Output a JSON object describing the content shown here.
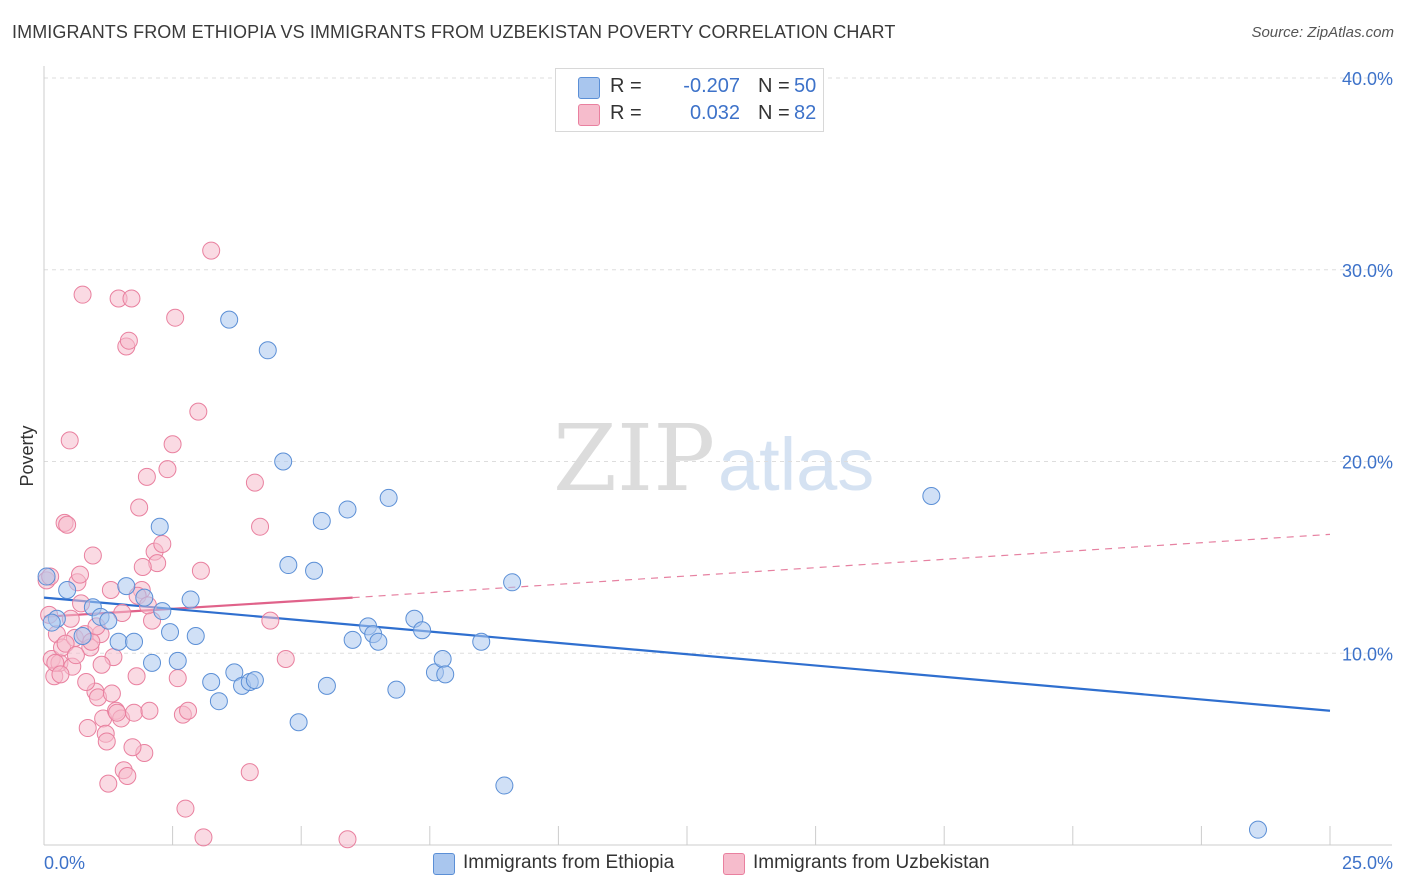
{
  "title": "IMMIGRANTS FROM ETHIOPIA VS IMMIGRANTS FROM UZBEKISTAN POVERTY CORRELATION CHART",
  "source": "Source: ZipAtlas.com",
  "watermark": {
    "zip": "ZIP",
    "atlas": "atlas"
  },
  "legend": {
    "rows": [
      {
        "r_label": "R =",
        "r_value": "-0.207",
        "n_label": "N =",
        "n_value": "50",
        "color": "#a9c6ee"
      },
      {
        "r_label": "R =",
        "r_value": "0.032",
        "n_label": "N =",
        "n_value": "82",
        "color": "#f6bccc"
      }
    ]
  },
  "bottom_legend": {
    "ethiopia": "Immigrants from Ethiopia",
    "uzbekistan": "Immigrants from Uzbekistan"
  },
  "colors": {
    "ethiopia_fill": "#a9c6ee",
    "ethiopia_stroke": "#5b8fd6",
    "ethiopia_line": "#2f6fcf",
    "uzbekistan_fill": "#f6bccc",
    "uzbekistan_stroke": "#e9809f",
    "uzbekistan_line": "#e0628a",
    "grid": "#dddddd",
    "tick": "#3d72c9"
  },
  "chart_data": {
    "type": "scatter",
    "title": "IMMIGRANTS FROM ETHIOPIA VS IMMIGRANTS FROM UZBEKISTAN POVERTY CORRELATION CHART",
    "xlabel": "",
    "ylabel": "Poverty",
    "xlim": [
      0,
      25
    ],
    "ylim": [
      0,
      40
    ],
    "x_tick_labels": [
      "0.0%",
      "25.0%"
    ],
    "y_ticks": [
      10,
      20,
      30,
      40
    ],
    "y_tick_labels": [
      "10.0%",
      "20.0%",
      "30.0%",
      "40.0%"
    ],
    "grid": true,
    "legend_position": "top-center",
    "series": [
      {
        "name": "Immigrants from Ethiopia",
        "R": -0.207,
        "N": 50,
        "trend": {
          "x": [
            0,
            25
          ],
          "y": [
            12.9,
            7.0
          ],
          "style": "solid"
        },
        "points": [
          [
            0.05,
            14.0
          ],
          [
            0.25,
            11.8
          ],
          [
            0.45,
            13.3
          ],
          [
            0.75,
            10.9
          ],
          [
            0.95,
            12.4
          ],
          [
            1.1,
            11.9
          ],
          [
            1.25,
            11.7
          ],
          [
            1.45,
            10.6
          ],
          [
            1.6,
            13.5
          ],
          [
            1.75,
            10.6
          ],
          [
            1.95,
            12.9
          ],
          [
            2.1,
            9.5
          ],
          [
            2.25,
            16.6
          ],
          [
            2.45,
            11.1
          ],
          [
            2.6,
            9.6
          ],
          [
            2.3,
            12.2
          ],
          [
            2.85,
            12.8
          ],
          [
            2.95,
            10.9
          ],
          [
            3.25,
            8.5
          ],
          [
            3.4,
            7.5
          ],
          [
            3.6,
            27.4
          ],
          [
            3.7,
            9.0
          ],
          [
            3.85,
            8.3
          ],
          [
            4.0,
            8.5
          ],
          [
            4.1,
            8.6
          ],
          [
            4.35,
            25.8
          ],
          [
            4.65,
            20.0
          ],
          [
            4.75,
            14.6
          ],
          [
            4.95,
            6.4
          ],
          [
            5.25,
            14.3
          ],
          [
            5.5,
            8.3
          ],
          [
            5.4,
            16.9
          ],
          [
            5.9,
            17.5
          ],
          [
            6.0,
            10.7
          ],
          [
            6.3,
            11.4
          ],
          [
            6.4,
            11.0
          ],
          [
            6.5,
            10.6
          ],
          [
            6.7,
            18.1
          ],
          [
            6.85,
            8.1
          ],
          [
            7.2,
            11.8
          ],
          [
            7.35,
            11.2
          ],
          [
            7.6,
            9.0
          ],
          [
            7.75,
            9.7
          ],
          [
            7.8,
            8.9
          ],
          [
            8.5,
            10.6
          ],
          [
            8.95,
            3.1
          ],
          [
            9.1,
            13.7
          ],
          [
            17.25,
            18.2
          ],
          [
            23.6,
            0.8
          ],
          [
            0.15,
            11.6
          ]
        ]
      },
      {
        "name": "Immigrants from Uzbekistan",
        "R": 0.032,
        "N": 82,
        "trend": {
          "x": [
            0,
            6.0
          ],
          "y": [
            11.9,
            12.9
          ],
          "style": "solid",
          "extension": {
            "x": [
              6.0,
              25
            ],
            "y": [
              12.9,
              16.2
            ],
            "style": "dashed"
          }
        },
        "points": [
          [
            0.05,
            13.8
          ],
          [
            0.1,
            12.0
          ],
          [
            0.15,
            9.7
          ],
          [
            0.2,
            8.8
          ],
          [
            0.25,
            11.0
          ],
          [
            0.3,
            9.5
          ],
          [
            0.35,
            10.3
          ],
          [
            0.4,
            16.8
          ],
          [
            0.45,
            16.7
          ],
          [
            0.5,
            21.1
          ],
          [
            0.55,
            9.3
          ],
          [
            0.6,
            10.8
          ],
          [
            0.65,
            13.7
          ],
          [
            0.7,
            14.1
          ],
          [
            0.75,
            28.7
          ],
          [
            0.8,
            11.0
          ],
          [
            0.85,
            6.1
          ],
          [
            0.9,
            10.3
          ],
          [
            0.95,
            15.1
          ],
          [
            1.0,
            8.0
          ],
          [
            1.05,
            7.7
          ],
          [
            1.1,
            11.0
          ],
          [
            1.15,
            6.6
          ],
          [
            1.2,
            5.8
          ],
          [
            1.25,
            3.2
          ],
          [
            1.3,
            13.3
          ],
          [
            1.35,
            9.8
          ],
          [
            1.4,
            7.0
          ],
          [
            1.45,
            28.5
          ],
          [
            1.5,
            6.6
          ],
          [
            1.55,
            3.9
          ],
          [
            1.6,
            26.0
          ],
          [
            1.65,
            26.3
          ],
          [
            1.7,
            28.5
          ],
          [
            1.75,
            6.9
          ],
          [
            1.8,
            8.8
          ],
          [
            1.85,
            17.6
          ],
          [
            1.9,
            13.3
          ],
          [
            1.95,
            4.8
          ],
          [
            2.0,
            19.2
          ],
          [
            2.05,
            7.0
          ],
          [
            2.1,
            11.7
          ],
          [
            2.15,
            15.3
          ],
          [
            2.2,
            14.7
          ],
          [
            2.3,
            15.7
          ],
          [
            2.4,
            19.6
          ],
          [
            2.5,
            20.9
          ],
          [
            2.55,
            27.5
          ],
          [
            2.6,
            8.7
          ],
          [
            2.7,
            6.8
          ],
          [
            2.75,
            1.9
          ],
          [
            2.8,
            7.0
          ],
          [
            3.0,
            22.6
          ],
          [
            3.05,
            14.3
          ],
          [
            3.1,
            0.4
          ],
          [
            3.25,
            31.0
          ],
          [
            4.0,
            3.8
          ],
          [
            4.1,
            18.9
          ],
          [
            4.2,
            16.6
          ],
          [
            4.4,
            11.7
          ],
          [
            4.7,
            9.7
          ],
          [
            5.9,
            0.3
          ],
          [
            0.12,
            14.0
          ],
          [
            0.22,
            9.5
          ],
          [
            0.32,
            8.9
          ],
          [
            0.42,
            10.5
          ],
          [
            0.52,
            11.8
          ],
          [
            0.62,
            9.9
          ],
          [
            0.72,
            12.6
          ],
          [
            0.82,
            8.5
          ],
          [
            0.92,
            10.6
          ],
          [
            1.02,
            11.4
          ],
          [
            1.12,
            9.4
          ],
          [
            1.22,
            5.4
          ],
          [
            1.32,
            7.9
          ],
          [
            1.42,
            6.9
          ],
          [
            1.52,
            12.1
          ],
          [
            1.62,
            3.6
          ],
          [
            1.72,
            5.1
          ],
          [
            1.82,
            13.0
          ],
          [
            1.92,
            14.5
          ],
          [
            2.02,
            12.5
          ]
        ]
      }
    ]
  }
}
